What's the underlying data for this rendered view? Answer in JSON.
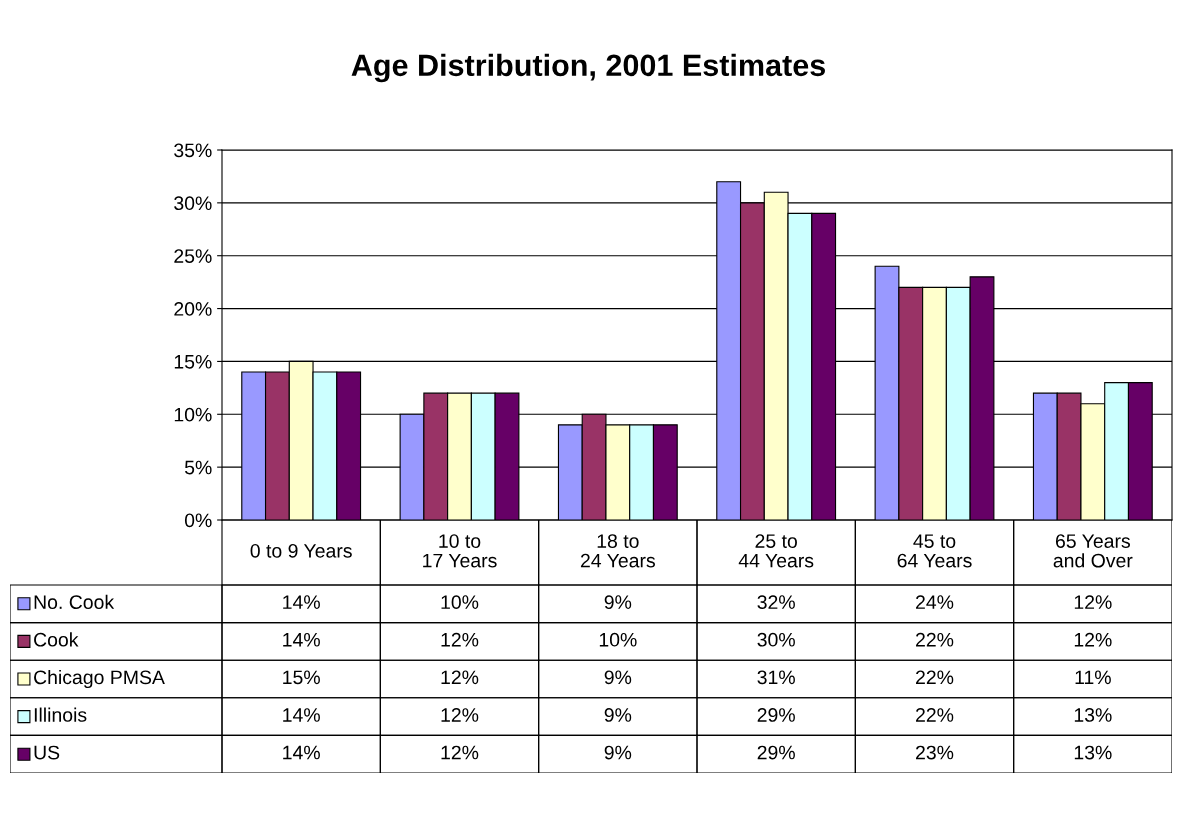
{
  "chart_data": {
    "type": "bar",
    "title": "Age Distribution, 2001 Estimates",
    "categories": [
      "0 to 9 Years",
      "10 to 17 Years",
      "18 to 24 Years",
      "25 to 44 Years",
      "45 to 64 Years",
      "65 Years and Over"
    ],
    "series": [
      {
        "name": "No. Cook",
        "color": "#9999ff",
        "values": [
          14,
          10,
          9,
          32,
          24,
          12
        ],
        "value_labels": [
          "14%",
          "10%",
          "9%",
          "32%",
          "24%",
          "12%"
        ]
      },
      {
        "name": "Cook",
        "color": "#993366",
        "values": [
          14,
          12,
          10,
          30,
          22,
          12
        ],
        "value_labels": [
          "14%",
          "12%",
          "10%",
          "30%",
          "22%",
          "12%"
        ]
      },
      {
        "name": "Chicago PMSA",
        "color": "#ffffcc",
        "values": [
          15,
          12,
          9,
          31,
          22,
          11
        ],
        "value_labels": [
          "15%",
          "12%",
          "9%",
          "31%",
          "22%",
          "11%"
        ]
      },
      {
        "name": "Illinois",
        "color": "#ccffff",
        "values": [
          14,
          12,
          9,
          29,
          22,
          13
        ],
        "value_labels": [
          "14%",
          "12%",
          "9%",
          "29%",
          "22%",
          "13%"
        ]
      },
      {
        "name": "US",
        "color": "#660066",
        "values": [
          14,
          12,
          9,
          29,
          23,
          13
        ],
        "value_labels": [
          "14%",
          "12%",
          "9%",
          "29%",
          "23%",
          "13%"
        ]
      }
    ],
    "ylim": [
      0,
      35
    ],
    "yticks": [
      {
        "value": 0,
        "label": "0%"
      },
      {
        "value": 5,
        "label": "5%"
      },
      {
        "value": 10,
        "label": "10%"
      },
      {
        "value": 15,
        "label": "15%"
      },
      {
        "value": 20,
        "label": "20%"
      },
      {
        "value": 25,
        "label": "25%"
      },
      {
        "value": 30,
        "label": "30%"
      },
      {
        "value": 35,
        "label": "35%"
      }
    ],
    "grid": "y",
    "legend": "bottom"
  }
}
